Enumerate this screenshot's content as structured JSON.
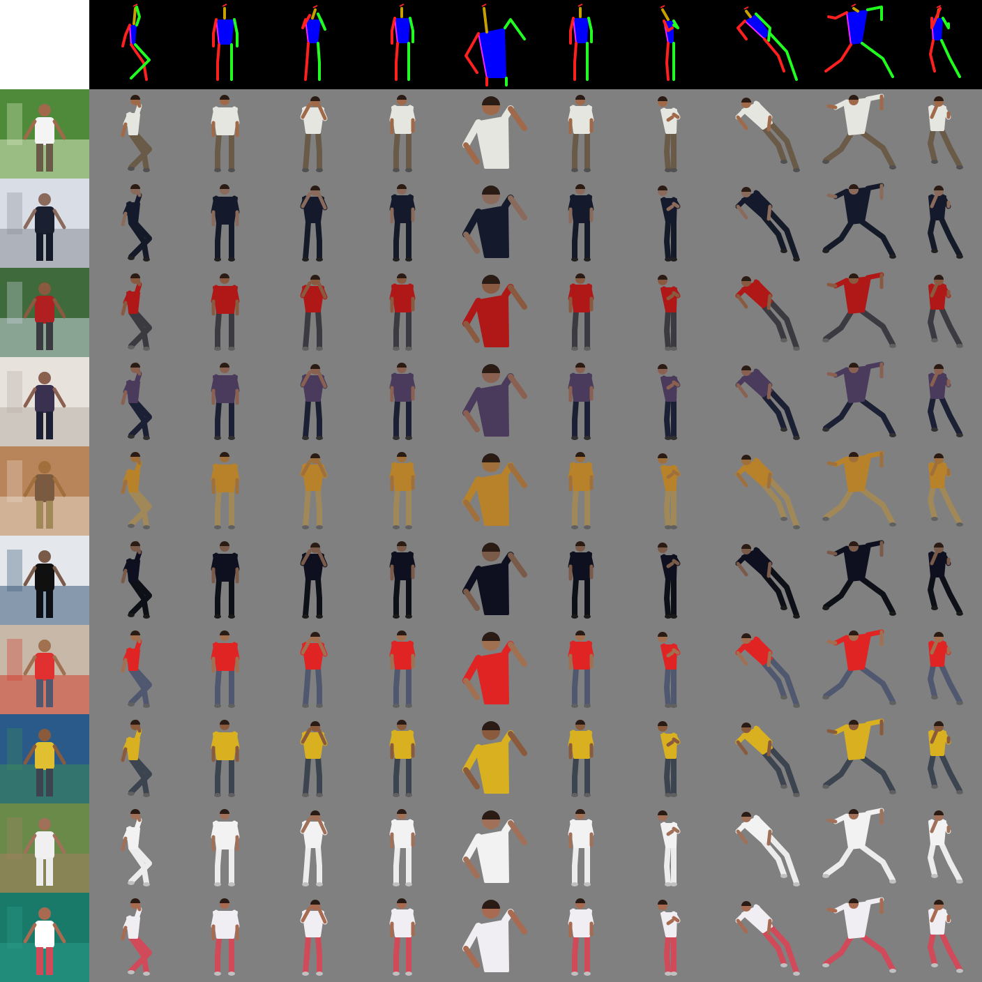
{
  "grid": {
    "rows": 10,
    "cols": 10,
    "background": "#808080",
    "pose_background": "#000000"
  },
  "skeleton_colors": {
    "right_limb": "#ff2020",
    "left_limb": "#20ff20",
    "torso": "#0000ff",
    "head": "#c8a000",
    "torso_edge": "#ff20ff"
  },
  "rows": [
    {
      "id": "tennis-serve-woman",
      "source": {
        "bg": "#4f8a3a",
        "accent": "#d8e8c0",
        "figure": "#f4f4f4"
      },
      "outfit": {
        "skin": "#a06a4a",
        "top": "#e6e6e0",
        "bottom": "#6a5a48",
        "shoes": "#505050"
      }
    },
    {
      "id": "snow-skier-dark",
      "source": {
        "bg": "#d9dde6",
        "accent": "#8a9098",
        "figure": "#1a2030"
      },
      "outfit": {
        "skin": "#8a6a5a",
        "top": "#141a2c",
        "bottom": "#141a28",
        "shoes": "#202020"
      }
    },
    {
      "id": "cyclist-red",
      "source": {
        "bg": "#3e6a3c",
        "accent": "#c8d4dc",
        "figure": "#b02020"
      },
      "outfit": {
        "skin": "#8a5a40",
        "top": "#b01818",
        "bottom": "#3a3a40",
        "shoes": "#606060"
      }
    },
    {
      "id": "skier-purple",
      "source": {
        "bg": "#e8e2dc",
        "accent": "#b8b0a8",
        "figure": "#3a3050"
      },
      "outfit": {
        "skin": "#8a6050",
        "top": "#4a3a5c",
        "bottom": "#1c2034",
        "shoes": "#303030"
      }
    },
    {
      "id": "selfie-indoor",
      "source": {
        "bg": "#b8845a",
        "accent": "#e8d8c8",
        "figure": "#7a5a40"
      },
      "outfit": {
        "skin": "#a0703c",
        "top": "#b8822a",
        "bottom": "#a08858",
        "shoes": "#606060"
      }
    },
    {
      "id": "snow-group-black",
      "source": {
        "bg": "#e4e8ec",
        "accent": "#3a5a7a",
        "figure": "#101010"
      },
      "outfit": {
        "skin": "#7a5a48",
        "top": "#0e1020",
        "bottom": "#0e1018",
        "shoes": "#1a1a1a"
      }
    },
    {
      "id": "street-red-shirt",
      "source": {
        "bg": "#c8b8a8",
        "accent": "#d04030",
        "figure": "#e03030"
      },
      "outfit": {
        "skin": "#a07050",
        "top": "#e02424",
        "bottom": "#505870",
        "shoes": "#606060"
      }
    },
    {
      "id": "tennis-yellow",
      "source": {
        "bg": "#2a5a8a",
        "accent": "#3a8a5a",
        "figure": "#e0c030"
      },
      "outfit": {
        "skin": "#8a5a3c",
        "top": "#d8b020",
        "bottom": "#3c4450",
        "shoes": "#606060"
      }
    },
    {
      "id": "baseball-pitcher",
      "source": {
        "bg": "#6a8a4a",
        "accent": "#a08060",
        "figure": "#f0f0f0"
      },
      "outfit": {
        "skin": "#a07058",
        "top": "#f2f2f2",
        "bottom": "#ececec",
        "shoes": "#c0c0c0"
      }
    },
    {
      "id": "tennis-white-red",
      "source": {
        "bg": "#1a7a6a",
        "accent": "#2a9a88",
        "figure": "#ffffff"
      },
      "outfit": {
        "skin": "#a86a50",
        "top": "#f0eef2",
        "bottom": "#d04a5a",
        "shoes": "#c0c0c0"
      }
    }
  ]
}
